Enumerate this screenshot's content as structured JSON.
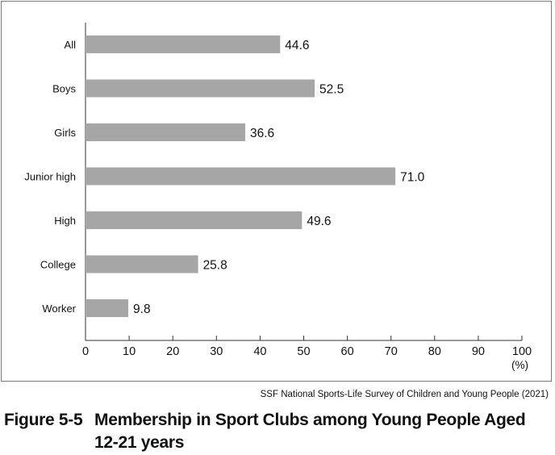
{
  "chart_data": {
    "type": "bar",
    "orientation": "horizontal",
    "categories": [
      "All",
      "Boys",
      "Girls",
      "Junior high",
      "High",
      "College",
      "Worker"
    ],
    "values": [
      44.6,
      52.5,
      36.6,
      71.0,
      49.6,
      25.8,
      9.8
    ],
    "value_labels": [
      "44.6",
      "52.5",
      "36.6",
      "71.0",
      "49.6",
      "25.8",
      "9.8"
    ],
    "xlim": [
      0,
      100
    ],
    "xticks": [
      0,
      10,
      20,
      30,
      40,
      50,
      60,
      70,
      80,
      90,
      100
    ],
    "xunit": "(%)",
    "bar_color": "#a6a6a6",
    "grid": false
  },
  "source": "SSF National Sports-Life Survey of Children and Young People (2021)",
  "caption": {
    "number": "Figure 5-5",
    "title_line1": "Membership in Sport Clubs among Young People Aged",
    "title_line2": "12-21 years"
  }
}
